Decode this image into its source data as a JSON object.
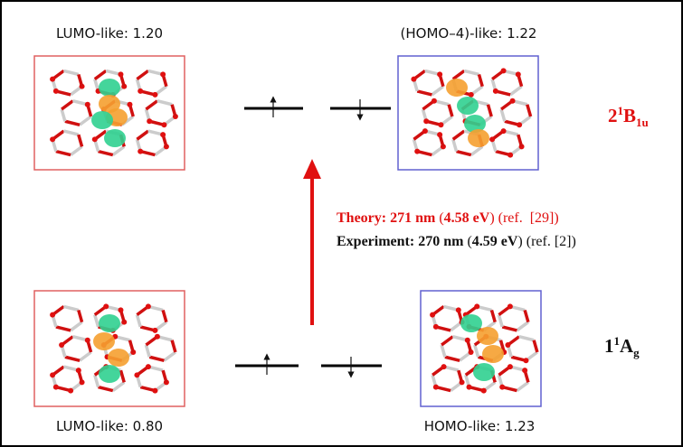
{
  "orbitals": [
    {
      "label": "LUMO-like: 1.20"
    },
    {
      "label": "(HOMO–4)-like: 1.22"
    },
    {
      "label": "LUMO-like: 0.80"
    },
    {
      "label": "HOMO-like: 1.23"
    }
  ],
  "states": [
    {
      "n": "2",
      "spin": "1",
      "sym": "B",
      "sub": "1u"
    },
    {
      "n": "1",
      "spin": "1",
      "sym": "A",
      "sub": "g"
    }
  ],
  "transition": {
    "theory": [
      "Theory: 271 nm",
      " (",
      "4.58 eV",
      ") (ref.  [29])"
    ],
    "experiment": [
      "Experiment: 270 nm",
      " (",
      "4.59 eV",
      ") (ref. [2])"
    ]
  }
}
